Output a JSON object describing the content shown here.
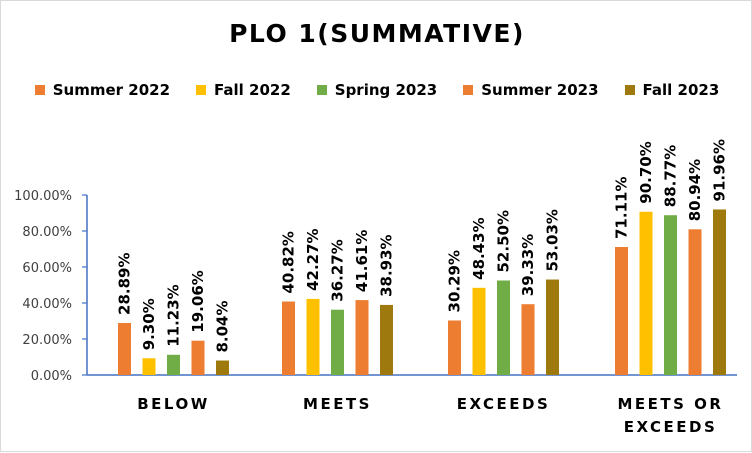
{
  "chart_data": {
    "type": "bar",
    "title": "PLO 1(SUMMATIVE)",
    "categories": [
      [
        "BELOW"
      ],
      [
        "MEETS"
      ],
      [
        "EXCEEDS"
      ],
      [
        "MEETS OR",
        "EXCEEDS"
      ]
    ],
    "series": [
      {
        "name": "Summer 2022",
        "color": "#ED7D31",
        "values": [
          28.89,
          40.82,
          30.29,
          71.11
        ],
        "labels": [
          "28.89%",
          "40.82%",
          "30.29%",
          "71.11%"
        ]
      },
      {
        "name": "Fall 2022",
        "color": "#FFC000",
        "values": [
          9.3,
          42.27,
          48.43,
          90.7
        ],
        "labels": [
          "9.30%",
          "42.27%",
          "48.43%",
          "90.70%"
        ]
      },
      {
        "name": "Spring 2023",
        "color": "#70AD47",
        "values": [
          11.23,
          36.27,
          52.5,
          88.77
        ],
        "labels": [
          "11.23%",
          "36.27%",
          "52.50%",
          "88.77%"
        ]
      },
      {
        "name": "Summer 2023",
        "color": "#ED7D31",
        "values": [
          19.06,
          41.61,
          39.33,
          80.94
        ],
        "labels": [
          "19.06%",
          "41.61%",
          "39.33%",
          "80.94%"
        ]
      },
      {
        "name": "Fall 2023",
        "color": "#9E7A0E",
        "values": [
          8.04,
          38.93,
          53.03,
          91.96
        ],
        "labels": [
          "8.04%",
          "38.93%",
          "53.03%",
          "91.96%"
        ]
      }
    ],
    "ylim": [
      0,
      100
    ],
    "yticks": [
      0,
      20,
      40,
      60,
      80,
      100
    ],
    "ytick_labels": [
      "0.00%",
      "20.00%",
      "40.00%",
      "60.00%",
      "80.00%",
      "100.00%"
    ],
    "xlabel": "",
    "ylabel": "",
    "legend_position": "top",
    "grid": false
  }
}
